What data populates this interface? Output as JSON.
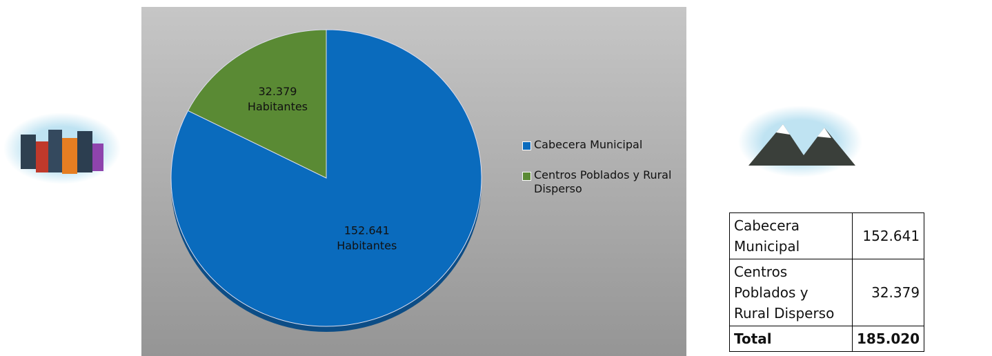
{
  "chart_data": {
    "type": "pie",
    "categories": [
      "Cabecera Municipal",
      "Centros Poblados y Rural Disperso"
    ],
    "values": [
      152641,
      32379
    ],
    "value_labels": [
      "152.641",
      "32.379"
    ],
    "label_unit": "Habitantes",
    "colors": [
      "#0a6bbd",
      "#5a8a34"
    ]
  },
  "table": {
    "rows": [
      [
        "Cabecera Municipal",
        "152.641"
      ],
      [
        "Centros Poblados y Rural Disperso",
        "32.379"
      ]
    ],
    "total": [
      "Total",
      "185.020"
    ]
  }
}
